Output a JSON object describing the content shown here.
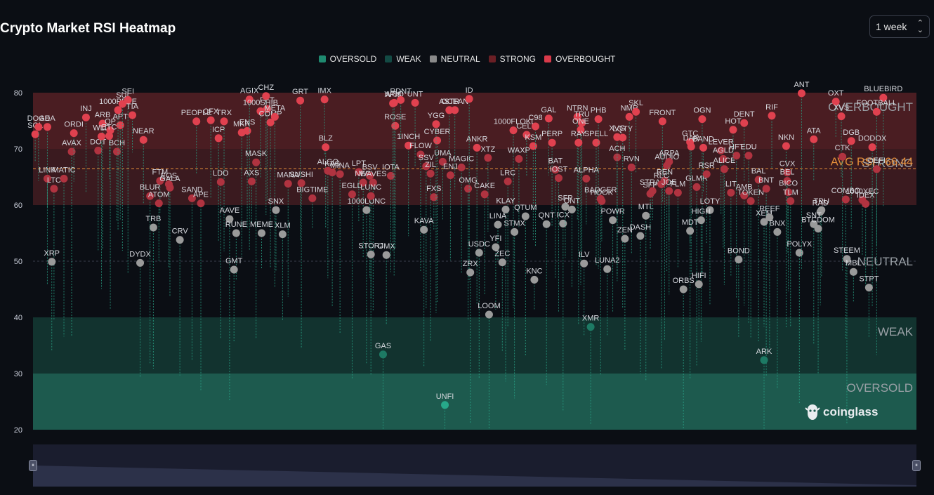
{
  "header": {
    "title": "Crypto Market RSI Heatmap",
    "period_select": {
      "value": "1 week",
      "icon": "chevron-updown-icon"
    }
  },
  "legend": [
    {
      "label": "OVERSOLD",
      "color": "#1f8a70"
    },
    {
      "label": "WEAK",
      "color": "#134a44"
    },
    {
      "label": "NEUTRAL",
      "color": "#8a8a8a"
    },
    {
      "label": "STRONG",
      "color": "#6b1f25"
    },
    {
      "label": "OVERBOUGHT",
      "color": "#d93a4a"
    }
  ],
  "brand": {
    "name": "coinglass",
    "icon": "coinglass-logo-icon"
  },
  "slider": {
    "left_handle": "⏸",
    "right_handle": "⏸"
  },
  "chart_data": {
    "type": "scatter",
    "title": "Crypto Market RSI Heatmap",
    "y_axis": {
      "ticks": [
        20,
        30,
        40,
        50,
        60,
        70,
        80
      ],
      "ylim": [
        20,
        80
      ]
    },
    "zones": [
      {
        "label": "OVERSOLD",
        "from": 20,
        "to": 30,
        "color": "#1d5a4e"
      },
      {
        "label": "WEAK",
        "from": 30,
        "to": 40,
        "color": "#12332f"
      },
      {
        "label": "NEUTRAL",
        "from": 40,
        "to": 60,
        "color": "#0b0e14"
      },
      {
        "label": "STRONG",
        "from": 60,
        "to": 70,
        "color": "#3a1a1f"
      },
      {
        "label": "OVERBOUGHT",
        "from": 70,
        "to": 80,
        "color": "#4a1d22"
      }
    ],
    "avg_rsi": {
      "label": "AVG RSI : 66.44",
      "value": 66.44,
      "color": "#e8903a"
    },
    "points": [
      {
        "t": "SOL",
        "x": 0.2,
        "y": 72.6
      },
      {
        "t": "DOGE",
        "x": 0.5,
        "y": 73.9
      },
      {
        "t": "ADA",
        "x": 1.3,
        "y": 73.9
      },
      {
        "t": "LINK",
        "x": 1.3,
        "y": 64.7
      },
      {
        "t": "LTC",
        "x": 1.9,
        "y": 62.9
      },
      {
        "t": "MATIC",
        "x": 2.8,
        "y": 64.7
      },
      {
        "t": "AVAX",
        "x": 3.5,
        "y": 69.5
      },
      {
        "t": "ORDI",
        "x": 3.7,
        "y": 72.8
      },
      {
        "t": "INJ",
        "x": 4.8,
        "y": 75.6
      },
      {
        "t": "DOT",
        "x": 5.9,
        "y": 69.7
      },
      {
        "t": "ARB",
        "x": 6.3,
        "y": 74.5
      },
      {
        "t": "WLD",
        "x": 6.2,
        "y": 72.2
      },
      {
        "t": "OP",
        "x": 7.0,
        "y": 73.3
      },
      {
        "t": "ETC",
        "x": 6.9,
        "y": 72.3
      },
      {
        "t": "BCH",
        "x": 7.6,
        "y": 69.5
      },
      {
        "t": "APT",
        "x": 7.9,
        "y": 74.2
      },
      {
        "t": "1000PEPE",
        "x": 7.7,
        "y": 76.9
      },
      {
        "t": "SUI",
        "x": 8.1,
        "y": 78.0
      },
      {
        "t": "SEI",
        "x": 8.6,
        "y": 78.7
      },
      {
        "t": "TIA",
        "x": 9.0,
        "y": 76.0
      },
      {
        "t": "NEAR",
        "x": 10.0,
        "y": 71.6
      },
      {
        "t": "XRP",
        "x": 1.7,
        "y": 49.9
      },
      {
        "t": "DYDX",
        "x": 9.7,
        "y": 49.7
      },
      {
        "t": "TRB",
        "x": 10.9,
        "y": 56.0
      },
      {
        "t": "BLUR",
        "x": 10.6,
        "y": 61.6
      },
      {
        "t": "FTM",
        "x": 11.5,
        "y": 64.3
      },
      {
        "t": "ATOM",
        "x": 11.4,
        "y": 60.3
      },
      {
        "t": "EOS",
        "x": 12.3,
        "y": 63.7
      },
      {
        "t": "GALA",
        "x": 12.4,
        "y": 63.1
      },
      {
        "t": "CRV",
        "x": 13.3,
        "y": 53.8
      },
      {
        "t": "SAND",
        "x": 14.4,
        "y": 61.2
      },
      {
        "t": "APE",
        "x": 15.2,
        "y": 60.3
      },
      {
        "t": "PEOPLE",
        "x": 14.8,
        "y": 74.9
      },
      {
        "t": "CFX",
        "x": 16.1,
        "y": 75.1
      },
      {
        "t": "ICP",
        "x": 16.8,
        "y": 71.9
      },
      {
        "t": "TRX",
        "x": 17.3,
        "y": 74.9
      },
      {
        "t": "LDO",
        "x": 17.0,
        "y": 64.1
      },
      {
        "t": "AAVE",
        "x": 17.8,
        "y": 57.5
      },
      {
        "t": "RUNE",
        "x": 18.4,
        "y": 55.0
      },
      {
        "t": "GMT",
        "x": 18.2,
        "y": 48.5
      },
      {
        "t": "ENS",
        "x": 19.4,
        "y": 73.2
      },
      {
        "t": "MKR",
        "x": 18.9,
        "y": 72.9
      },
      {
        "t": "AGIX",
        "x": 19.6,
        "y": 78.8
      },
      {
        "t": "MASK",
        "x": 20.2,
        "y": 67.6
      },
      {
        "t": "AXS",
        "x": 19.8,
        "y": 64.2
      },
      {
        "t": "1000SHIB",
        "x": 20.6,
        "y": 76.7
      },
      {
        "t": "FET",
        "x": 21.2,
        "y": 77.1
      },
      {
        "t": "CHZ",
        "x": 21.1,
        "y": 79.4
      },
      {
        "t": "COMP",
        "x": 21.5,
        "y": 74.7
      },
      {
        "t": "META",
        "x": 21.9,
        "y": 75.7
      },
      {
        "t": "MEME",
        "x": 20.7,
        "y": 55.0
      },
      {
        "t": "SNX",
        "x": 22.0,
        "y": 59.1
      },
      {
        "t": "XLM",
        "x": 22.6,
        "y": 54.8
      },
      {
        "t": "MANA",
        "x": 23.1,
        "y": 63.8
      },
      {
        "t": "GRT",
        "x": 24.2,
        "y": 78.6
      },
      {
        "t": "SUSHI",
        "x": 24.3,
        "y": 63.9
      },
      {
        "t": "BIGTIME",
        "x": 25.3,
        "y": 61.2
      },
      {
        "t": "IMX",
        "x": 26.4,
        "y": 78.8
      },
      {
        "t": "BLZ",
        "x": 26.5,
        "y": 70.3
      },
      {
        "t": "ALGO",
        "x": 26.7,
        "y": 66.1
      },
      {
        "t": "KAS",
        "x": 27.1,
        "y": 65.8
      },
      {
        "t": "MINA",
        "x": 27.8,
        "y": 65.5
      },
      {
        "t": "EGLD",
        "x": 28.9,
        "y": 61.9
      },
      {
        "t": "LPT",
        "x": 29.5,
        "y": 65.9
      },
      {
        "t": "NEO",
        "x": 29.9,
        "y": 64.0
      },
      {
        "t": "BSV",
        "x": 30.5,
        "y": 65.2
      },
      {
        "t": "WAVES",
        "x": 30.8,
        "y": 64.0
      },
      {
        "t": "1000LUNC",
        "x": 30.2,
        "y": 59.1
      },
      {
        "t": "LUNC",
        "x": 30.6,
        "y": 61.6
      },
      {
        "t": "STORJ",
        "x": 30.6,
        "y": 51.2
      },
      {
        "t": "GMX",
        "x": 32.0,
        "y": 51.1
      },
      {
        "t": "IOTA",
        "x": 32.4,
        "y": 65.2
      },
      {
        "t": "ROSE",
        "x": 32.8,
        "y": 74.1
      },
      {
        "t": "API3",
        "x": 32.6,
        "y": 78.1
      },
      {
        "t": "WOO",
        "x": 32.7,
        "y": 78.2
      },
      {
        "t": "RDNT",
        "x": 33.3,
        "y": 78.7
      },
      {
        "t": "UNT",
        "x": 34.6,
        "y": 78.2
      },
      {
        "t": "1INCH",
        "x": 34.0,
        "y": 70.6
      },
      {
        "t": "FLOW",
        "x": 35.1,
        "y": 69.0
      },
      {
        "t": "SSV",
        "x": 35.6,
        "y": 66.9
      },
      {
        "t": "ZIL",
        "x": 36.0,
        "y": 65.6
      },
      {
        "t": "FXS",
        "x": 36.3,
        "y": 61.4
      },
      {
        "t": "UMA",
        "x": 37.1,
        "y": 67.7
      },
      {
        "t": "ENJ",
        "x": 37.8,
        "y": 65.3
      },
      {
        "t": "GAS",
        "x": 31.7,
        "y": 33.4
      },
      {
        "t": "KAVA",
        "x": 35.4,
        "y": 55.6
      },
      {
        "t": "CYBER",
        "x": 36.6,
        "y": 71.5
      },
      {
        "t": "YGG",
        "x": 36.5,
        "y": 74.4
      },
      {
        "t": "ASTR",
        "x": 37.7,
        "y": 76.9
      },
      {
        "t": "OCEAN",
        "x": 38.2,
        "y": 76.9
      },
      {
        "t": "MAGIC",
        "x": 38.8,
        "y": 66.7
      },
      {
        "t": "OMG",
        "x": 39.4,
        "y": 62.9
      },
      {
        "t": "ANKR",
        "x": 40.2,
        "y": 70.2
      },
      {
        "t": "ID",
        "x": 39.5,
        "y": 78.9
      },
      {
        "t": "UNFI",
        "x": 37.3,
        "y": 24.4
      },
      {
        "t": "XTZ",
        "x": 41.2,
        "y": 68.4
      },
      {
        "t": "CAKE",
        "x": 40.9,
        "y": 61.9
      },
      {
        "t": "USDC",
        "x": 40.4,
        "y": 51.5
      },
      {
        "t": "ZRX",
        "x": 39.6,
        "y": 48.0
      },
      {
        "t": "1000FLOKI",
        "x": 43.5,
        "y": 73.3
      },
      {
        "t": "CELR",
        "x": 44.7,
        "y": 72.5
      },
      {
        "t": "WAXP",
        "x": 44.0,
        "y": 68.2
      },
      {
        "t": "KSM",
        "x": 45.3,
        "y": 70.5
      },
      {
        "t": "C98",
        "x": 45.5,
        "y": 74.0
      },
      {
        "t": "LRC",
        "x": 43.0,
        "y": 64.2
      },
      {
        "t": "KLAY",
        "x": 42.8,
        "y": 59.2
      },
      {
        "t": "LINA",
        "x": 42.1,
        "y": 56.5
      },
      {
        "t": "YFI",
        "x": 41.9,
        "y": 52.5
      },
      {
        "t": "ZEC",
        "x": 42.5,
        "y": 49.8
      },
      {
        "t": "LOOM",
        "x": 41.3,
        "y": 40.5
      },
      {
        "t": "QTUM",
        "x": 44.6,
        "y": 58.0
      },
      {
        "t": "STMX",
        "x": 43.6,
        "y": 55.2
      },
      {
        "t": "KNC",
        "x": 45.4,
        "y": 46.7
      },
      {
        "t": "GAL",
        "x": 46.7,
        "y": 75.4
      },
      {
        "t": "PERP",
        "x": 47.0,
        "y": 71.1
      },
      {
        "t": "BAT",
        "x": 47.3,
        "y": 66.3
      },
      {
        "t": "IOST",
        "x": 47.6,
        "y": 64.8
      },
      {
        "t": "QNT",
        "x": 46.5,
        "y": 56.6
      },
      {
        "t": "ICX",
        "x": 48.0,
        "y": 56.7
      },
      {
        "t": "SFP",
        "x": 48.2,
        "y": 59.7
      },
      {
        "t": "ONT",
        "x": 48.8,
        "y": 59.2
      },
      {
        "t": "NTRN",
        "x": 49.3,
        "y": 75.7
      },
      {
        "t": "TRU",
        "x": 49.7,
        "y": 74.6
      },
      {
        "t": "ONE",
        "x": 49.6,
        "y": 73.4
      },
      {
        "t": "RAY",
        "x": 49.4,
        "y": 71.1
      },
      {
        "t": "ALPHA",
        "x": 50.1,
        "y": 64.7
      },
      {
        "t": "ILV",
        "x": 49.9,
        "y": 49.6
      },
      {
        "t": "XMR",
        "x": 50.5,
        "y": 38.3
      },
      {
        "t": "SPELL",
        "x": 51.0,
        "y": 71.1
      },
      {
        "t": "PHB",
        "x": 51.2,
        "y": 75.3
      },
      {
        "t": "BADGER",
        "x": 51.4,
        "y": 61.1
      },
      {
        "t": "HOOK",
        "x": 51.5,
        "y": 60.7
      },
      {
        "t": "LUNA2",
        "x": 52.0,
        "y": 48.6
      },
      {
        "t": "POWR",
        "x": 52.5,
        "y": 57.3
      },
      {
        "t": "ACH",
        "x": 52.9,
        "y": 68.5
      },
      {
        "t": "XVG",
        "x": 52.9,
        "y": 72.1
      },
      {
        "t": "LQTY",
        "x": 53.4,
        "y": 72.0
      },
      {
        "t": "NMR",
        "x": 54.0,
        "y": 75.7
      },
      {
        "t": "SKL",
        "x": 54.6,
        "y": 76.6
      },
      {
        "t": "RVN",
        "x": 54.2,
        "y": 66.7
      },
      {
        "t": "ZEN",
        "x": 53.6,
        "y": 54.0
      },
      {
        "t": "DASH",
        "x": 55.0,
        "y": 54.5
      },
      {
        "t": "MTL",
        "x": 55.5,
        "y": 58.1
      },
      {
        "t": "STRAX",
        "x": 56.1,
        "y": 62.5
      },
      {
        "t": "SFP2",
        "x": 55.9,
        "y": 62.0
      },
      {
        "t": "FRONT",
        "x": 57.0,
        "y": 74.9
      },
      {
        "t": "AUDIO",
        "x": 57.4,
        "y": 67.0
      },
      {
        "t": "ARPA",
        "x": 57.6,
        "y": 67.7
      },
      {
        "t": "REN",
        "x": 57.2,
        "y": 64.3
      },
      {
        "t": "RLC",
        "x": 56.9,
        "y": 63.7
      },
      {
        "t": "JOE",
        "x": 57.6,
        "y": 62.5
      },
      {
        "t": "FLM",
        "x": 58.4,
        "y": 62.2
      },
      {
        "t": "GTC",
        "x": 59.5,
        "y": 71.2
      },
      {
        "t": "DAR",
        "x": 59.6,
        "y": 70.4
      },
      {
        "t": "OGN",
        "x": 60.6,
        "y": 75.3
      },
      {
        "t": "GLMR",
        "x": 60.1,
        "y": 63.2
      },
      {
        "t": "BAND",
        "x": 60.7,
        "y": 70.2
      },
      {
        "t": "RSR",
        "x": 61.0,
        "y": 65.5
      },
      {
        "t": "LOTY",
        "x": 61.3,
        "y": 59.1
      },
      {
        "t": "HIGH",
        "x": 60.5,
        "y": 57.3
      },
      {
        "t": "MDT",
        "x": 59.5,
        "y": 55.4
      },
      {
        "t": "ORBS",
        "x": 58.9,
        "y": 45.0
      },
      {
        "t": "HIFI",
        "x": 60.3,
        "y": 45.9
      },
      {
        "t": "LEVER",
        "x": 62.3,
        "y": 69.7
      },
      {
        "t": "AGLD",
        "x": 62.5,
        "y": 68.2
      },
      {
        "t": "ALICE",
        "x": 62.6,
        "y": 66.4
      },
      {
        "t": "HFT",
        "x": 63.7,
        "y": 68.8
      },
      {
        "t": "EDU",
        "x": 64.8,
        "y": 68.8
      },
      {
        "t": "HOT",
        "x": 63.4,
        "y": 73.4
      },
      {
        "t": "DENT",
        "x": 64.4,
        "y": 74.6
      },
      {
        "t": "LIT",
        "x": 63.2,
        "y": 62.2
      },
      {
        "t": "AMB",
        "x": 64.4,
        "y": 61.7
      },
      {
        "t": "TOKEN",
        "x": 65.0,
        "y": 60.7
      },
      {
        "t": "BAL",
        "x": 65.7,
        "y": 64.5
      },
      {
        "t": "BNT",
        "x": 66.4,
        "y": 62.9
      },
      {
        "t": "RIF",
        "x": 66.9,
        "y": 75.9
      },
      {
        "t": "BOND",
        "x": 63.9,
        "y": 50.3
      },
      {
        "t": "XEM",
        "x": 66.2,
        "y": 57.0
      },
      {
        "t": "REEF",
        "x": 66.7,
        "y": 57.8
      },
      {
        "t": "BNX",
        "x": 67.4,
        "y": 55.2
      },
      {
        "t": "NKN",
        "x": 68.2,
        "y": 70.5
      },
      {
        "t": "CVX",
        "x": 68.3,
        "y": 65.8
      },
      {
        "t": "BEL",
        "x": 68.3,
        "y": 64.3
      },
      {
        "t": "BICO",
        "x": 68.4,
        "y": 62.3
      },
      {
        "t": "TLM",
        "x": 68.6,
        "y": 60.7
      },
      {
        "t": "POLYX",
        "x": 69.4,
        "y": 51.5
      },
      {
        "t": "ANT",
        "x": 69.6,
        "y": 79.9
      },
      {
        "t": "ATA",
        "x": 70.7,
        "y": 71.7
      },
      {
        "t": "TRU2",
        "x": 71.4,
        "y": 59.1
      },
      {
        "t": "RAD",
        "x": 71.3,
        "y": 58.8
      },
      {
        "t": "SNT",
        "x": 70.7,
        "y": 56.6
      },
      {
        "t": "BTCDOM",
        "x": 71.1,
        "y": 55.8
      },
      {
        "t": "ARK",
        "x": 66.2,
        "y": 32.4
      },
      {
        "t": "OXT",
        "x": 72.7,
        "y": 78.4
      },
      {
        "t": "XVS",
        "x": 73.2,
        "y": 75.8
      },
      {
        "t": "DGB",
        "x": 74.1,
        "y": 71.4
      },
      {
        "t": "CTK",
        "x": 73.3,
        "y": 68.6
      },
      {
        "t": "COMBO",
        "x": 73.6,
        "y": 61.0
      },
      {
        "t": "STEEM",
        "x": 73.7,
        "y": 50.4
      },
      {
        "t": "MBL",
        "x": 74.3,
        "y": 48.1
      },
      {
        "t": "1000XEC",
        "x": 75.1,
        "y": 60.9
      },
      {
        "t": "IDEX",
        "x": 75.4,
        "y": 60.2
      },
      {
        "t": "BLUEBIRD",
        "x": 77.0,
        "y": 79.1
      },
      {
        "t": "FOOTBALL",
        "x": 76.4,
        "y": 76.6
      },
      {
        "t": "DODOX",
        "x": 76.0,
        "y": 70.3
      },
      {
        "t": "DEFI",
        "x": 76.4,
        "y": 66.4
      },
      {
        "t": "STPT",
        "x": 75.7,
        "y": 45.3
      }
    ]
  }
}
